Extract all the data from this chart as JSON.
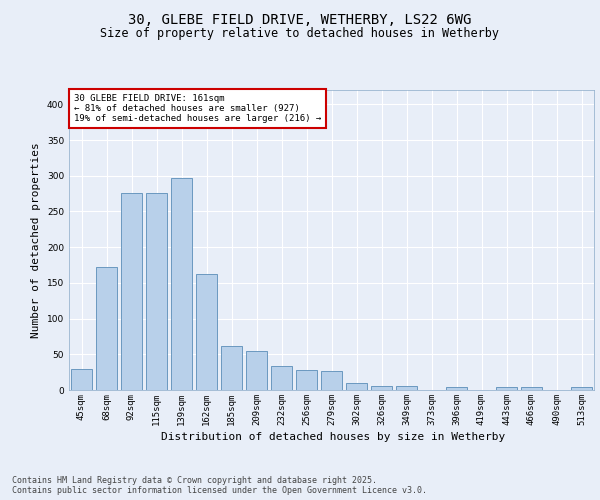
{
  "title": "30, GLEBE FIELD DRIVE, WETHERBY, LS22 6WG",
  "subtitle": "Size of property relative to detached houses in Wetherby",
  "xlabel": "Distribution of detached houses by size in Wetherby",
  "ylabel": "Number of detached properties",
  "categories": [
    "45sqm",
    "68sqm",
    "92sqm",
    "115sqm",
    "139sqm",
    "162sqm",
    "185sqm",
    "209sqm",
    "232sqm",
    "256sqm",
    "279sqm",
    "302sqm",
    "326sqm",
    "349sqm",
    "373sqm",
    "396sqm",
    "419sqm",
    "443sqm",
    "466sqm",
    "490sqm",
    "513sqm"
  ],
  "values": [
    30,
    172,
    276,
    276,
    297,
    162,
    62,
    54,
    33,
    28,
    26,
    10,
    6,
    5,
    0,
    4,
    0,
    4,
    4,
    0,
    4
  ],
  "bar_color": "#b8d0ea",
  "bar_edge_color": "#5b8db8",
  "annotation_box_text": "30 GLEBE FIELD DRIVE: 161sqm\n← 81% of detached houses are smaller (927)\n19% of semi-detached houses are larger (216) →",
  "annotation_box_color": "#cc0000",
  "annotation_box_fill": "#ffffff",
  "ylim": [
    0,
    420
  ],
  "yticks": [
    0,
    50,
    100,
    150,
    200,
    250,
    300,
    350,
    400
  ],
  "background_color": "#e8eef8",
  "grid_color": "#ffffff",
  "footer_text": "Contains HM Land Registry data © Crown copyright and database right 2025.\nContains public sector information licensed under the Open Government Licence v3.0.",
  "title_fontsize": 10,
  "subtitle_fontsize": 8.5,
  "ylabel_fontsize": 8,
  "xlabel_fontsize": 8,
  "tick_fontsize": 6.5,
  "annotation_fontsize": 6.5,
  "footer_fontsize": 6
}
